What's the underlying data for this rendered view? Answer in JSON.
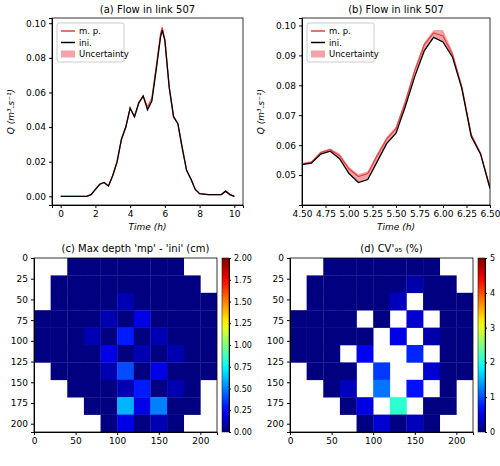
{
  "chart_data": [
    {
      "type": "line",
      "title": "(a) Flow in link 507",
      "x_label": "Time (h)",
      "y_label": "Q (m³.s⁻¹)",
      "x": [
        0,
        0.5,
        1,
        1.5,
        1.75,
        2,
        2.25,
        2.5,
        2.75,
        3,
        3.25,
        3.5,
        3.75,
        4,
        4.25,
        4.5,
        4.75,
        5,
        5.25,
        5.5,
        5.75,
        5.85,
        6,
        6.25,
        6.5,
        6.75,
        7,
        7.25,
        7.5,
        7.75,
        8,
        8.5,
        9,
        9.25,
        9.5,
        9.75,
        10
      ],
      "series": [
        {
          "name": "m. p.",
          "type": "line",
          "color": "#e8413c",
          "values": [
            0,
            0,
            0,
            0,
            0.001,
            0.004,
            0.007,
            0.008,
            0.006,
            0.012,
            0.02,
            0.033,
            0.04,
            0.051,
            0.046,
            0.054,
            0.058,
            0.0515,
            0.0565,
            0.0745,
            0.0935,
            0.0975,
            0.0905,
            0.063,
            0.046,
            0.042,
            0.028,
            0.015,
            0.01,
            0.004,
            0.0015,
            0.001,
            0.001,
            0.001,
            0.003,
            0.001,
            0
          ]
        },
        {
          "name": "ini.",
          "type": "line",
          "color": "#000000",
          "values": [
            0,
            0,
            0,
            0,
            0.001,
            0.004,
            0.007,
            0.008,
            0.006,
            0.012,
            0.02,
            0.033,
            0.04,
            0.051,
            0.046,
            0.054,
            0.058,
            0.05,
            0.055,
            0.073,
            0.092,
            0.096,
            0.09,
            0.063,
            0.046,
            0.042,
            0.028,
            0.015,
            0.01,
            0.004,
            0.0015,
            0.001,
            0.001,
            0.001,
            0.003,
            0.001,
            0
          ]
        },
        {
          "name": "Uncertainty",
          "type": "area",
          "color": "#f4a3ab",
          "lower": [
            0,
            0,
            0,
            0,
            0.001,
            0.004,
            0.007,
            0.008,
            0.006,
            0.012,
            0.02,
            0.033,
            0.04,
            0.051,
            0.046,
            0.054,
            0.058,
            0.05,
            0.055,
            0.073,
            0.092,
            0.096,
            0.09,
            0.063,
            0.046,
            0.042,
            0.028,
            0.015,
            0.01,
            0.004,
            0.0015,
            0.001,
            0.001,
            0.001,
            0.003,
            0.001,
            0
          ],
          "upper": [
            0,
            0,
            0,
            0,
            0.001,
            0.004,
            0.007,
            0.008,
            0.006,
            0.012,
            0.02,
            0.033,
            0.04,
            0.051,
            0.046,
            0.054,
            0.058,
            0.0522,
            0.0572,
            0.0752,
            0.0942,
            0.0982,
            0.0912,
            0.0635,
            0.046,
            0.042,
            0.028,
            0.015,
            0.01,
            0.004,
            0.0015,
            0.001,
            0.001,
            0.001,
            0.003,
            0.001,
            0
          ]
        }
      ],
      "xlim": [
        -0.5,
        10.5
      ],
      "xticks": [
        0,
        2,
        4,
        6,
        8,
        10
      ],
      "ylim": [
        -0.005,
        0.103
      ],
      "yticks": [
        {
          "value": 0,
          "label": "0.00"
        },
        {
          "value": 0.02,
          "label": "0.02"
        },
        {
          "value": 0.04,
          "label": "0.04"
        },
        {
          "value": 0.06,
          "label": "0.06"
        },
        {
          "value": 0.08,
          "label": "0.08"
        },
        {
          "value": 0.1,
          "label": "0.10"
        }
      ],
      "legend": "upper left"
    },
    {
      "type": "line",
      "title": "(b) Flow in link 507",
      "x_label": "Time (h)",
      "y_label": "Q (m³.s⁻¹)",
      "x": [
        4.5,
        4.6,
        4.7,
        4.8,
        4.9,
        5.0,
        5.1,
        5.2,
        5.3,
        5.4,
        5.5,
        5.6,
        5.7,
        5.8,
        5.9,
        6.0,
        6.1,
        6.2,
        6.3,
        6.4,
        6.5
      ],
      "series": [
        {
          "name": "m. p.",
          "type": "line",
          "color": "#e8413c",
          "values": [
            0.0537,
            0.0543,
            0.0575,
            0.0585,
            0.0565,
            0.052,
            0.0495,
            0.0505,
            0.0565,
            0.062,
            0.0655,
            0.0745,
            0.085,
            0.0935,
            0.0975,
            0.0965,
            0.0905,
            0.0795,
            0.0635,
            0.0572,
            0.0458
          ]
        },
        {
          "name": "ini.",
          "type": "line",
          "color": "#000000",
          "values": [
            0.0535,
            0.054,
            0.057,
            0.058,
            0.0555,
            0.0505,
            0.0475,
            0.0485,
            0.0545,
            0.0605,
            0.064,
            0.073,
            0.083,
            0.0915,
            0.096,
            0.0945,
            0.0895,
            0.079,
            0.063,
            0.057,
            0.0455
          ]
        },
        {
          "name": "Uncertainty",
          "type": "area",
          "color": "#f4a3ab",
          "lower": [
            0.0535,
            0.054,
            0.057,
            0.058,
            0.0555,
            0.0505,
            0.0475,
            0.0485,
            0.0545,
            0.0605,
            0.064,
            0.073,
            0.083,
            0.0915,
            0.096,
            0.0945,
            0.0895,
            0.079,
            0.063,
            0.057,
            0.0455
          ],
          "upper": [
            0.054,
            0.0546,
            0.058,
            0.059,
            0.0572,
            0.0528,
            0.0503,
            0.0513,
            0.0572,
            0.0627,
            0.0662,
            0.0752,
            0.0857,
            0.0942,
            0.0985,
            0.0985,
            0.0915,
            0.08,
            0.064,
            0.0575,
            0.046
          ]
        }
      ],
      "xlim": [
        4.5,
        6.5
      ],
      "xticks": [
        {
          "value": 4.5,
          "label": "4.50"
        },
        {
          "value": 4.75,
          "label": "4.75"
        },
        {
          "value": 5,
          "label": "5.00"
        },
        {
          "value": 5.25,
          "label": "5.25"
        },
        {
          "value": 5.5,
          "label": "5.50"
        },
        {
          "value": 5.75,
          "label": "5.75"
        },
        {
          "value": 6,
          "label": "6.00"
        },
        {
          "value": 6.25,
          "label": "6.25"
        },
        {
          "value": 6.5,
          "label": "6.50"
        }
      ],
      "ylim": [
        0.04,
        0.1025
      ],
      "yticks": [
        {
          "value": 0.05,
          "label": "0.05"
        },
        {
          "value": 0.06,
          "label": "0.06"
        },
        {
          "value": 0.07,
          "label": "0.07"
        },
        {
          "value": 0.08,
          "label": "0.08"
        },
        {
          "value": 0.09,
          "label": "0.09"
        },
        {
          "value": 0.1,
          "label": "0.10"
        }
      ],
      "legend": "upper left"
    },
    {
      "type": "heatmap",
      "title": "(c) Max depth 'mp' - 'ini' (cm)",
      "x_edges": [
        0,
        20,
        40,
        60,
        80,
        100,
        120,
        140,
        160,
        180,
        200,
        220
      ],
      "y_edges": [
        0,
        21,
        42,
        63,
        84,
        105,
        126,
        147,
        168,
        189,
        210
      ],
      "cells": [
        [
          null,
          null,
          0,
          0,
          0,
          0,
          0,
          0,
          0,
          null,
          null
        ],
        [
          null,
          0,
          0,
          0,
          0,
          0,
          0,
          0,
          0,
          0,
          null
        ],
        [
          null,
          0,
          0,
          0,
          0,
          0.1,
          0,
          0,
          0,
          0,
          0
        ],
        [
          0,
          0,
          0,
          0,
          0.1,
          0,
          0.2,
          0,
          0,
          0,
          0
        ],
        [
          0,
          0,
          0,
          0.1,
          0,
          0.3,
          0,
          0.1,
          0,
          0,
          0
        ],
        [
          0,
          0,
          0,
          0,
          0.2,
          0,
          0.1,
          0,
          0.1,
          0,
          0
        ],
        [
          null,
          0,
          0,
          0,
          0.1,
          0.4,
          0,
          0.2,
          0,
          0,
          0
        ],
        [
          null,
          null,
          0,
          0,
          0,
          0.1,
          0.3,
          0,
          0.1,
          0,
          null
        ],
        [
          null,
          null,
          null,
          0,
          0,
          0.6,
          0.2,
          0.5,
          0,
          0,
          null
        ],
        [
          null,
          null,
          null,
          null,
          0,
          0.2,
          0,
          0.1,
          0,
          null,
          null
        ]
      ],
      "xlim": [
        0,
        220
      ],
      "xticks": [
        0,
        50,
        100,
        150,
        200
      ],
      "ylim": [
        210,
        0
      ],
      "yticks": [
        0,
        25,
        50,
        75,
        100,
        125,
        150,
        175,
        200
      ],
      "colorbar": {
        "range": [
          0,
          2
        ],
        "ticks": [
          {
            "value": 0,
            "label": "0.00"
          },
          {
            "value": 0.25,
            "label": "0.25"
          },
          {
            "value": 0.5,
            "label": "0.50"
          },
          {
            "value": 0.75,
            "label": "0.75"
          },
          {
            "value": 1,
            "label": "1.00"
          },
          {
            "value": 1.25,
            "label": "1.25"
          },
          {
            "value": 1.5,
            "label": "1.50"
          },
          {
            "value": 1.75,
            "label": "1.75"
          },
          {
            "value": 2,
            "label": "2.00"
          }
        ]
      }
    },
    {
      "type": "heatmap",
      "title": "(d) CV'₉₅ (%)",
      "x_edges": [
        0,
        20,
        40,
        60,
        80,
        100,
        120,
        140,
        160,
        180,
        200,
        220
      ],
      "y_edges": [
        0,
        21,
        42,
        63,
        84,
        105,
        126,
        147,
        168,
        189,
        210
      ],
      "cells": [
        [
          null,
          null,
          0,
          0,
          0,
          0,
          0,
          0,
          0,
          null,
          null
        ],
        [
          null,
          0,
          0,
          0,
          0,
          0,
          0,
          0.2,
          0,
          0,
          null
        ],
        [
          null,
          0,
          0,
          0,
          0,
          0,
          0.3,
          null,
          0,
          0,
          0
        ],
        [
          0,
          0,
          0,
          0,
          null,
          0,
          null,
          0.4,
          null,
          0,
          0
        ],
        [
          0,
          0,
          0,
          0,
          0,
          null,
          0.5,
          null,
          0.2,
          0,
          0
        ],
        [
          0,
          0,
          0,
          null,
          0.6,
          null,
          null,
          0.8,
          null,
          0,
          0
        ],
        [
          null,
          0,
          0,
          0,
          null,
          0.9,
          null,
          null,
          0.4,
          0,
          0
        ],
        [
          null,
          null,
          0,
          0.3,
          null,
          1.2,
          null,
          0.7,
          null,
          0,
          null
        ],
        [
          null,
          null,
          null,
          0,
          0.5,
          null,
          2.1,
          null,
          0,
          0,
          null
        ],
        [
          null,
          null,
          null,
          null,
          0,
          0.4,
          0,
          0.3,
          0,
          null,
          null
        ]
      ],
      "xlim": [
        0,
        220
      ],
      "xticks": [
        0,
        50,
        100,
        150,
        200
      ],
      "ylim": [
        210,
        0
      ],
      "yticks": [
        0,
        25,
        50,
        75,
        100,
        125,
        150,
        175,
        200
      ],
      "colorbar": {
        "range": [
          0,
          5
        ],
        "ticks": [
          0,
          1,
          2,
          3,
          4,
          5
        ]
      }
    }
  ]
}
